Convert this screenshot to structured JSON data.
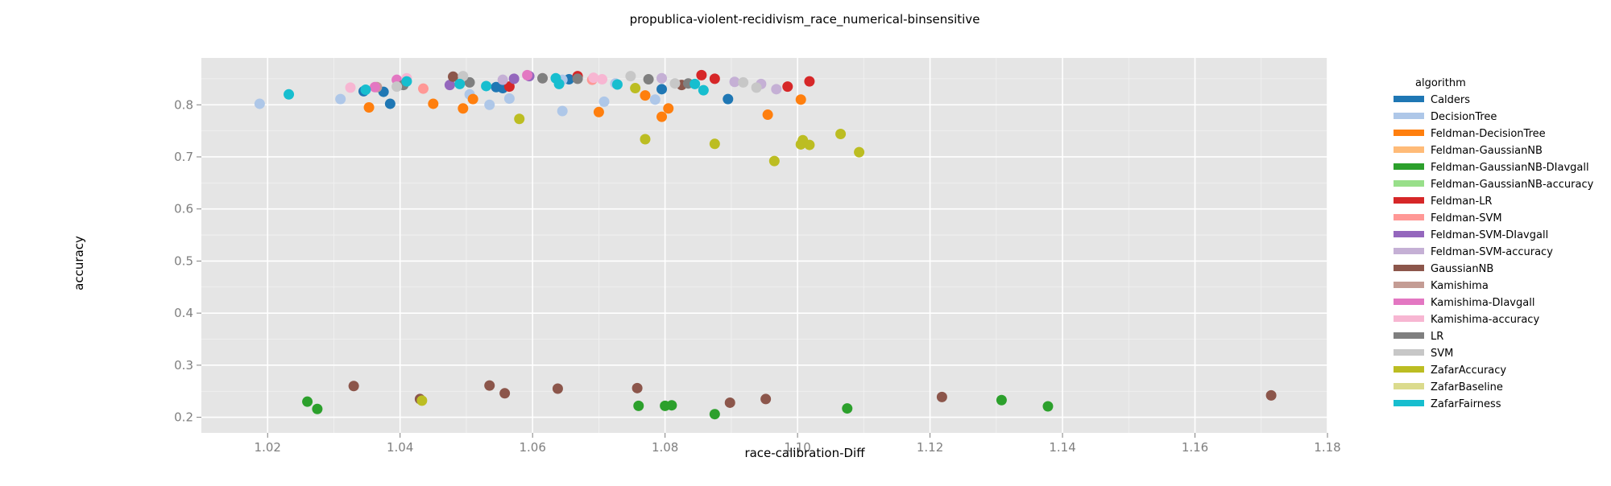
{
  "chart_data": {
    "type": "scatter",
    "title": "propublica-violent-recidivism_race_numerical-binsensitive",
    "xlabel": "race-calibration-Diff",
    "ylabel": "accuracy",
    "xlim": [
      1.01,
      1.18
    ],
    "ylim": [
      0.17,
      0.89
    ],
    "xticks": [
      1.02,
      1.04,
      1.06,
      1.08,
      1.1,
      1.12,
      1.14,
      1.16,
      1.18
    ],
    "xtick_labels": [
      "1.02",
      "1.04",
      "1.06",
      "1.08",
      "1.10",
      "1.12",
      "1.14",
      "1.16",
      "1.18"
    ],
    "yticks": [
      0.2,
      0.3,
      0.4,
      0.5,
      0.6,
      0.7,
      0.8
    ],
    "ytick_labels": [
      "0.2",
      "0.3",
      "0.4",
      "0.5",
      "0.6",
      "0.7",
      "0.8"
    ],
    "grid": true,
    "legend": {
      "title": "algorithm",
      "placement": "right"
    },
    "series": [
      {
        "name": "Calders",
        "color": "#1f77b4",
        "points": [
          [
            1.0345,
            0.826
          ],
          [
            1.0375,
            0.825
          ],
          [
            1.0385,
            0.802
          ],
          [
            1.0545,
            0.834
          ],
          [
            1.0555,
            0.832
          ],
          [
            1.0795,
            0.83
          ],
          [
            1.0895,
            0.811
          ],
          [
            1.0655,
            0.849
          ]
        ]
      },
      {
        "name": "DecisionTree",
        "color": "#aec7e8",
        "points": [
          [
            1.0188,
            0.802
          ],
          [
            1.031,
            0.811
          ],
          [
            1.0505,
            0.82
          ],
          [
            1.0535,
            0.8
          ],
          [
            1.0565,
            0.812
          ],
          [
            1.0645,
            0.788
          ],
          [
            1.0708,
            0.806
          ],
          [
            1.0785,
            0.81
          ],
          [
            1.0645,
            0.848
          ],
          [
            1.0725,
            0.841
          ]
        ]
      },
      {
        "name": "Feldman-DecisionTree",
        "color": "#ff7f0e",
        "points": [
          [
            1.0353,
            0.795
          ],
          [
            1.045,
            0.802
          ],
          [
            1.0495,
            0.793
          ],
          [
            1.051,
            0.811
          ],
          [
            1.07,
            0.786
          ],
          [
            1.077,
            0.818
          ],
          [
            1.0795,
            0.777
          ],
          [
            1.0805,
            0.793
          ],
          [
            1.0955,
            0.781
          ],
          [
            1.1005,
            0.81
          ]
        ]
      },
      {
        "name": "Feldman-GaussianNB",
        "color": "#ffbb78",
        "points": []
      },
      {
        "name": "Feldman-GaussianNB-DIavgall",
        "color": "#2ca02c",
        "points": [
          [
            1.026,
            0.23
          ],
          [
            1.0275,
            0.216
          ],
          [
            1.076,
            0.222
          ],
          [
            1.08,
            0.222
          ],
          [
            1.081,
            0.223
          ],
          [
            1.0875,
            0.206
          ],
          [
            1.1075,
            0.217
          ],
          [
            1.1308,
            0.233
          ],
          [
            1.1378,
            0.221
          ]
        ]
      },
      {
        "name": "Feldman-GaussianNB-accuracy",
        "color": "#98df8a",
        "points": []
      },
      {
        "name": "Feldman-LR",
        "color": "#d62728",
        "points": [
          [
            1.0565,
            0.835
          ],
          [
            1.0668,
            0.855
          ],
          [
            1.0855,
            0.857
          ],
          [
            1.0875,
            0.85
          ],
          [
            1.0985,
            0.835
          ],
          [
            1.1018,
            0.845
          ]
        ]
      },
      {
        "name": "Feldman-SVM",
        "color": "#ff9896",
        "points": [
          [
            1.0435,
            0.831
          ],
          [
            1.069,
            0.848
          ]
        ]
      },
      {
        "name": "Feldman-SVM-DIavgall",
        "color": "#9467bd",
        "points": [
          [
            1.0572,
            0.85
          ],
          [
            1.0475,
            0.838
          ],
          [
            1.0595,
            0.855
          ]
        ]
      },
      {
        "name": "Feldman-SVM-accuracy",
        "color": "#c5b0d5",
        "points": [
          [
            1.0555,
            0.848
          ],
          [
            1.0795,
            0.851
          ],
          [
            1.0905,
            0.844
          ],
          [
            1.0945,
            0.84
          ],
          [
            1.0968,
            0.83
          ]
        ]
      },
      {
        "name": "GaussianNB",
        "color": "#8c564b",
        "points": [
          [
            1.033,
            0.26
          ],
          [
            1.043,
            0.235
          ],
          [
            1.0535,
            0.261
          ],
          [
            1.0558,
            0.246
          ],
          [
            1.0638,
            0.255
          ],
          [
            1.0758,
            0.256
          ],
          [
            1.0898,
            0.228
          ],
          [
            1.0952,
            0.235
          ],
          [
            1.1218,
            0.239
          ],
          [
            1.1715,
            0.242
          ],
          [
            1.048,
            0.854
          ],
          [
            1.0825,
            0.838
          ]
        ]
      },
      {
        "name": "Kamishima",
        "color": "#c49c94",
        "points": [
          [
            1.0365,
            0.834
          ]
        ]
      },
      {
        "name": "Kamishima-DIavgall",
        "color": "#e377c2",
        "points": [
          [
            1.0362,
            0.834
          ],
          [
            1.0395,
            0.848
          ],
          [
            1.0592,
            0.857
          ]
        ]
      },
      {
        "name": "Kamishima-accuracy",
        "color": "#f7b6d2",
        "points": [
          [
            1.0325,
            0.833
          ],
          [
            1.041,
            0.851
          ],
          [
            1.0615,
            0.851
          ],
          [
            1.0692,
            0.852
          ],
          [
            1.0705,
            0.849
          ]
        ]
      },
      {
        "name": "LR",
        "color": "#7f7f7f",
        "points": [
          [
            1.0405,
            0.838
          ],
          [
            1.0505,
            0.843
          ],
          [
            1.0615,
            0.851
          ],
          [
            1.0668,
            0.85
          ],
          [
            1.0775,
            0.849
          ],
          [
            1.0835,
            0.841
          ]
        ]
      },
      {
        "name": "SVM",
        "color": "#c7c7c7",
        "points": [
          [
            1.0395,
            0.835
          ],
          [
            1.0495,
            0.855
          ],
          [
            1.0748,
            0.855
          ],
          [
            1.0815,
            0.841
          ],
          [
            1.0918,
            0.843
          ],
          [
            1.0938,
            0.833
          ]
        ]
      },
      {
        "name": "ZafarAccuracy",
        "color": "#bcbd22",
        "points": [
          [
            1.0433,
            0.232
          ],
          [
            1.058,
            0.773
          ],
          [
            1.0755,
            0.832
          ],
          [
            1.077,
            0.734
          ],
          [
            1.0875,
            0.725
          ],
          [
            1.0965,
            0.692
          ],
          [
            1.1005,
            0.724
          ],
          [
            1.1008,
            0.732
          ],
          [
            1.1018,
            0.723
          ],
          [
            1.1065,
            0.744
          ],
          [
            1.1093,
            0.709
          ]
        ]
      },
      {
        "name": "ZafarBaseline",
        "color": "#dbdb8d",
        "points": []
      },
      {
        "name": "ZafarFairness",
        "color": "#17becf",
        "points": [
          [
            1.0232,
            0.82
          ],
          [
            1.0348,
            0.829
          ],
          [
            1.041,
            0.845
          ],
          [
            1.049,
            0.84
          ],
          [
            1.053,
            0.836
          ],
          [
            1.0635,
            0.851
          ],
          [
            1.064,
            0.84
          ],
          [
            1.0728,
            0.839
          ],
          [
            1.0845,
            0.84
          ],
          [
            1.0858,
            0.828
          ]
        ]
      }
    ]
  }
}
